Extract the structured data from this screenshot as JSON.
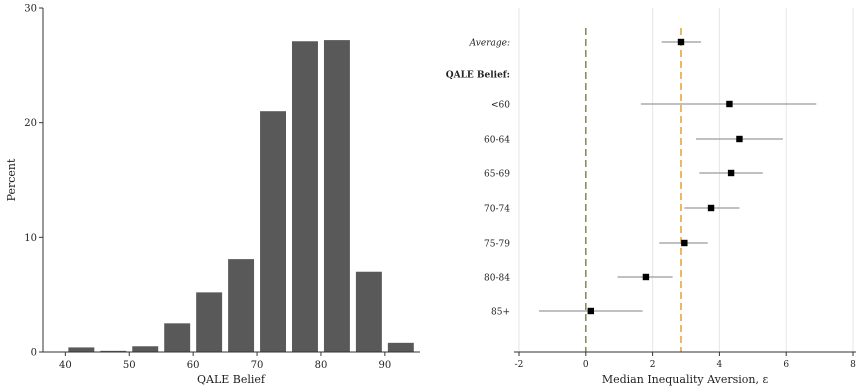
{
  "chart_data": [
    {
      "type": "bar",
      "xlabel": "QALE Belief",
      "ylabel": "Percent",
      "xlim": [
        36.5,
        95.5
      ],
      "ylim": [
        0,
        30
      ],
      "xticks": [
        40,
        50,
        60,
        70,
        80,
        90
      ],
      "yticks": [
        0,
        10,
        20,
        30
      ],
      "bin_width": 5,
      "bar_color": "#595959",
      "bars": [
        {
          "center": 42.5,
          "value": 0.4
        },
        {
          "center": 47.5,
          "value": 0.1
        },
        {
          "center": 52.5,
          "value": 0.5
        },
        {
          "center": 57.5,
          "value": 2.5
        },
        {
          "center": 62.5,
          "value": 5.2
        },
        {
          "center": 67.5,
          "value": 8.1
        },
        {
          "center": 72.5,
          "value": 21.0
        },
        {
          "center": 77.5,
          "value": 27.1
        },
        {
          "center": 82.5,
          "value": 27.2
        },
        {
          "center": 87.5,
          "value": 7.0
        },
        {
          "center": 92.5,
          "value": 0.8
        }
      ]
    },
    {
      "type": "scatter",
      "subtype": "coefficient-plot",
      "xlabel": "Median Inequality Aversion, ε",
      "xlim": [
        -2,
        8
      ],
      "xticks": [
        -2,
        0,
        2,
        4,
        6,
        8
      ],
      "grid": true,
      "zero_line_color": "#7a8a5a",
      "average_line_value": 2.85,
      "average_line_color": "#e8a030",
      "heading": "QALE Belief:",
      "rows": [
        {
          "label": "Average:",
          "italic": true,
          "estimate": 2.85,
          "ci": [
            2.27,
            3.45
          ]
        },
        {
          "label": "QALE Belief:",
          "heading": true
        },
        {
          "label": "<60",
          "estimate": 4.3,
          "ci": [
            1.65,
            6.9
          ]
        },
        {
          "label": "60-64",
          "estimate": 4.6,
          "ci": [
            3.3,
            5.9
          ]
        },
        {
          "label": "65-69",
          "estimate": 4.35,
          "ci": [
            3.4,
            5.3
          ]
        },
        {
          "label": "70-74",
          "estimate": 3.75,
          "ci": [
            2.95,
            4.6
          ]
        },
        {
          "label": "75-79",
          "estimate": 2.95,
          "ci": [
            2.2,
            3.65
          ]
        },
        {
          "label": "80-84",
          "estimate": 1.8,
          "ci": [
            0.95,
            2.6
          ]
        },
        {
          "label": "85+",
          "estimate": 0.15,
          "ci": [
            -1.4,
            1.7
          ]
        }
      ]
    }
  ]
}
